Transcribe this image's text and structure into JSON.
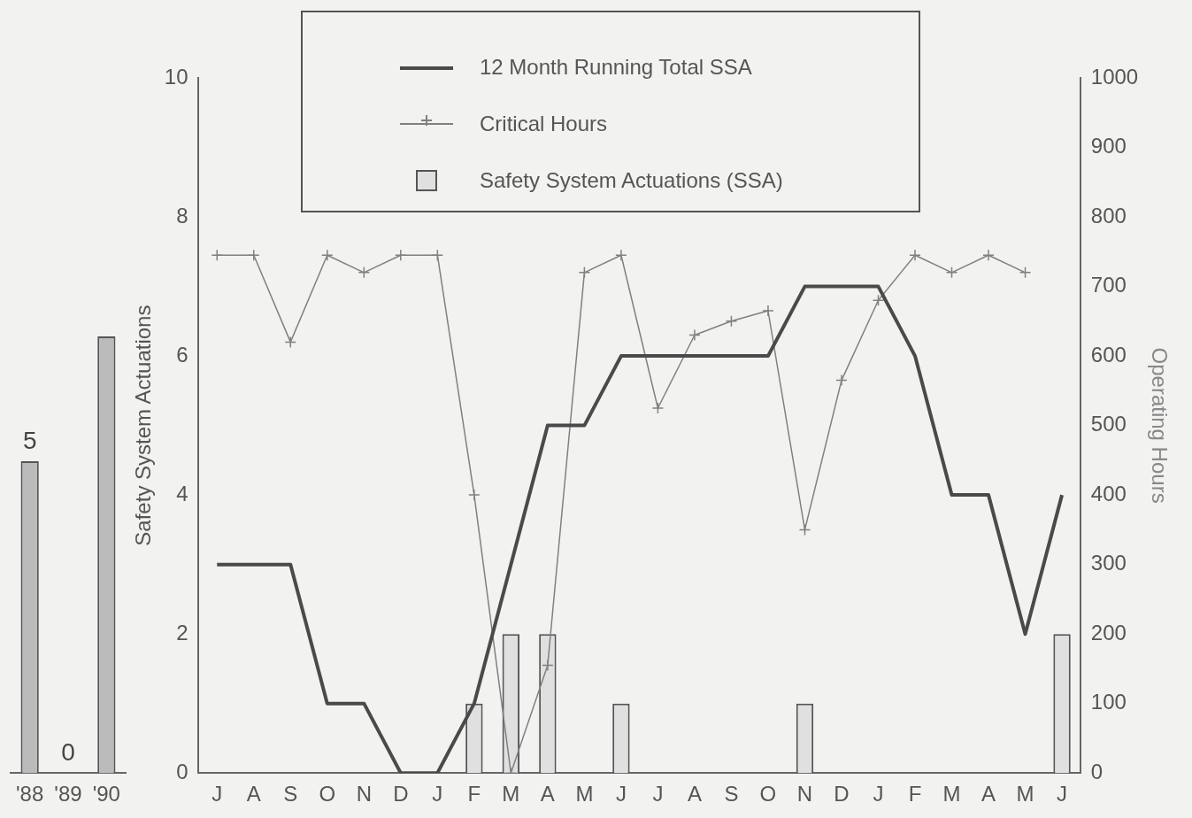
{
  "chart_data": [
    {
      "type": "bar",
      "categories": [
        "'88",
        "'89",
        "'90"
      ],
      "values": [
        5,
        0,
        7
      ],
      "value_labels": [
        "5",
        "0",
        null
      ],
      "color": "#bbbbbb",
      "tick_labels": "x",
      "grid": false,
      "legend": false
    },
    {
      "type": "line",
      "categories": [
        "J",
        "A",
        "S",
        "O",
        "N",
        "D",
        "J",
        "F",
        "M",
        "A",
        "M",
        "J",
        "J",
        "A",
        "S",
        "O",
        "N",
        "D",
        "J",
        "F",
        "M",
        "A",
        "M",
        "J"
      ],
      "ylabel": "Safety System Actuations",
      "y2label": "Operating Hours",
      "ylim": [
        0,
        10
      ],
      "yticks": [
        0,
        2,
        4,
        6,
        8,
        10
      ],
      "y2lim": [
        0,
        1000
      ],
      "y2ticks": [
        0,
        100,
        200,
        300,
        400,
        500,
        600,
        700,
        800,
        900,
        1000
      ],
      "grid": false,
      "legend": "top",
      "series": [
        {
          "name": "12 Month Running Total SSA",
          "color": "#4a4a4a",
          "marker": "none",
          "values": [
            3,
            3,
            3,
            1,
            1,
            0,
            0,
            1,
            3,
            5,
            5,
            6,
            6,
            6,
            6,
            6,
            7,
            7,
            7,
            6,
            4,
            4,
            2,
            4
          ]
        },
        {
          "name": "Critical Hours",
          "axis": "y2",
          "color": "#808080",
          "marker": "cross",
          "values": [
            745,
            745,
            620,
            745,
            720,
            745,
            745,
            400,
            0,
            155,
            720,
            745,
            525,
            630,
            650,
            665,
            350,
            565,
            680,
            745,
            720,
            745,
            720,
            null
          ]
        },
        {
          "name": "Safety System Actuations (SSA)",
          "type": "bar",
          "color": "#e0e0e0",
          "values": [
            0,
            0,
            0,
            0,
            0,
            0,
            0,
            1,
            2,
            2,
            0,
            1,
            0,
            0,
            0,
            0,
            1,
            0,
            0,
            0,
            0,
            0,
            0,
            2
          ]
        }
      ]
    }
  ]
}
